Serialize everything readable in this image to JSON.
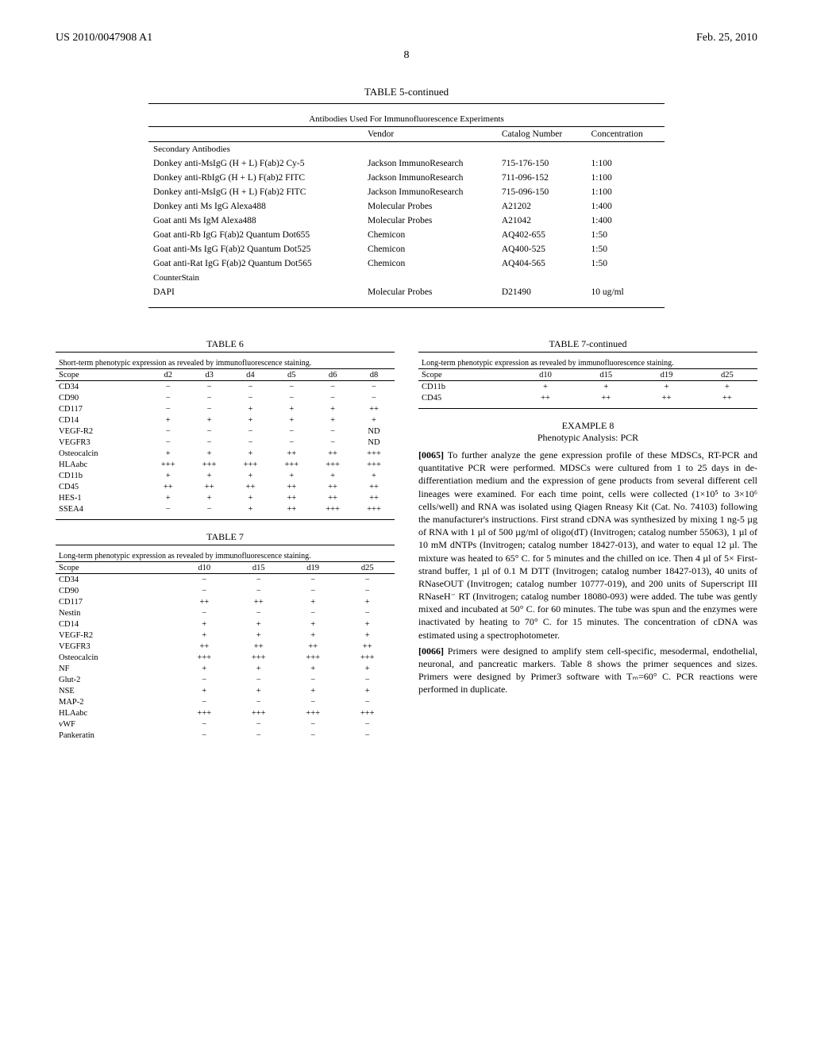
{
  "header": {
    "pub_number": "US 2010/0047908 A1",
    "pub_date": "Feb. 25, 2010",
    "page": "8"
  },
  "table5": {
    "title": "TABLE 5-continued",
    "caption": "Antibodies Used For Immunofluorescence Experiments",
    "columns": [
      "",
      "Vendor",
      "Catalog Number",
      "Concentration"
    ],
    "section1": "Secondary Antibodies",
    "rows": [
      [
        "Donkey anti-MsIgG (H + L) F(ab)2 Cy-5",
        "Jackson ImmunoResearch",
        "715-176-150",
        "1:100"
      ],
      [
        "Donkey anti-RbIgG (H + L) F(ab)2 FITC",
        "Jackson ImmunoResearch",
        "711-096-152",
        "1:100"
      ],
      [
        "Donkey anti-MsIgG (H + L) F(ab)2 FITC",
        "Jackson ImmunoResearch",
        "715-096-150",
        "1:100"
      ],
      [
        "Donkey anti Ms IgG Alexa488",
        "Molecular Probes",
        "A21202",
        "1:400"
      ],
      [
        "Goat anti Ms IgM Alexa488",
        "Molecular Probes",
        "A21042",
        "1:400"
      ],
      [
        "Goat anti-Rb IgG F(ab)2 Quantum Dot655",
        "Chemicon",
        "AQ402-655",
        "1:50"
      ],
      [
        "Goat anti-Ms IgG F(ab)2 Quantum Dot525",
        "Chemicon",
        "AQ400-525",
        "1:50"
      ],
      [
        "Goat anti-Rat IgG F(ab)2 Quantum Dot565",
        "Chemicon",
        "AQ404-565",
        "1:50"
      ]
    ],
    "section2": "CounterStain",
    "rows2": [
      [
        "DAPI",
        "Molecular Probes",
        "D21490",
        "10 ug/ml"
      ]
    ]
  },
  "table6": {
    "title": "TABLE 6",
    "caption": "Short-term phenotypic expression as revealed by immunofluorescence staining.",
    "columns": [
      "Scope",
      "d2",
      "d3",
      "d4",
      "d5",
      "d6",
      "d8"
    ],
    "rows": [
      [
        "CD34",
        "−",
        "−",
        "−",
        "−",
        "−",
        "−"
      ],
      [
        "CD90",
        "−",
        "−",
        "−",
        "−",
        "−",
        "−"
      ],
      [
        "CD117",
        "−",
        "−",
        "+",
        "+",
        "+",
        "++"
      ],
      [
        "CD14",
        "+",
        "+",
        "+",
        "+",
        "+",
        "+"
      ],
      [
        "VEGF-R2",
        "−",
        "−",
        "−",
        "−",
        "−",
        "ND"
      ],
      [
        "VEGFR3",
        "−",
        "−",
        "−",
        "−",
        "−",
        "ND"
      ],
      [
        "Osteocalcin",
        "+",
        "+",
        "+",
        "++",
        "++",
        "+++"
      ],
      [
        "HLAabc",
        "+++",
        "+++",
        "+++",
        "+++",
        "+++",
        "+++"
      ],
      [
        "CD11b",
        "+",
        "+",
        "+",
        "+",
        "+",
        "+"
      ],
      [
        "CD45",
        "++",
        "++",
        "++",
        "++",
        "++",
        "++"
      ],
      [
        "HES-1",
        "+",
        "+",
        "+",
        "++",
        "++",
        "++"
      ],
      [
        "SSEA4",
        "−",
        "−",
        "+",
        "++",
        "+++",
        "+++"
      ]
    ]
  },
  "table7": {
    "title": "TABLE 7",
    "caption": "Long-term phenotypic expression as revealed by immunofluorescence staining.",
    "columns": [
      "Scope",
      "d10",
      "d15",
      "d19",
      "d25"
    ],
    "rows": [
      [
        "CD34",
        "−",
        "−",
        "−",
        "−"
      ],
      [
        "CD90",
        "−",
        "−",
        "−",
        "−"
      ],
      [
        "CD117",
        "++",
        "++",
        "+",
        "+"
      ],
      [
        "Nestin",
        "−",
        "−",
        "−",
        "−"
      ],
      [
        "CD14",
        "+",
        "+",
        "+",
        "+"
      ],
      [
        "VEGF-R2",
        "+",
        "+",
        "+",
        "+"
      ],
      [
        "VEGFR3",
        "++",
        "++",
        "++",
        "++"
      ],
      [
        "Osteocalcin",
        "+++",
        "+++",
        "+++",
        "+++"
      ],
      [
        "NF",
        "+",
        "+",
        "+",
        "+"
      ],
      [
        "Glut-2",
        "−",
        "−",
        "−",
        "−"
      ],
      [
        "NSE",
        "+",
        "+",
        "+",
        "+"
      ],
      [
        "MAP-2",
        "−",
        "−",
        "−",
        "−"
      ],
      [
        "HLAabc",
        "+++",
        "+++",
        "+++",
        "+++"
      ],
      [
        "vWF",
        "−",
        "−",
        "−",
        "−"
      ],
      [
        "Pankeratin",
        "−",
        "−",
        "−",
        "−"
      ]
    ]
  },
  "table7c": {
    "title": "TABLE 7-continued",
    "caption": "Long-term phenotypic expression as revealed by immunofluorescence staining.",
    "columns": [
      "Scope",
      "d10",
      "d15",
      "d19",
      "d25"
    ],
    "rows": [
      [
        "CD11b",
        "+",
        "+",
        "+",
        "+"
      ],
      [
        "CD45",
        "++",
        "++",
        "++",
        "++"
      ]
    ]
  },
  "example8": {
    "heading": "EXAMPLE 8",
    "sub": "Phenotypic Analysis: PCR",
    "p1_num": "[0065]",
    "p1": "To further analyze the gene expression profile of these MDSCs, RT-PCR and quantitative PCR were performed. MDSCs were cultured from 1 to 25 days in de-differentiation medium and the expression of gene products from several different cell lineages were examined. For each time point, cells were collected (1×10⁵ to 3×10⁶ cells/well) and RNA was isolated using Qiagen Rneasy Kit (Cat. No. 74103) following the manufacturer's instructions. First strand cDNA was synthesized by mixing 1 ng-5 µg of RNA with 1 µl of 500 µg/ml of oligo(dT) (Invitrogen; catalog number 55063), 1 µl of 10 mM dNTPs (Invitrogen; catalog number 18427-013), and water to equal 12 µl. The mixture was heated to 65° C. for 5 minutes and the chilled on ice. Then 4 µl of 5× First-strand buffer, 1 µl of 0.1 M DTT (Invitrogen; catalog number 18427-013), 40 units of RNaseOUT (Invitrogen; catalog number 10777-019), and 200 units of Superscript III RNaseH⁻ RT (Invitrogen; catalog number 18080-093) were added. The tube was gently mixed and incubated at 50° C. for 60 minutes. The tube was spun and the enzymes were inactivated by heating to 70° C. for 15 minutes. The concentration of cDNA was estimated using a spectrophotometer.",
    "p2_num": "[0066]",
    "p2": "Primers were designed to amplify stem cell-specific, mesodermal, endothelial, neuronal, and pancreatic markers. Table 8 shows the primer sequences and sizes. Primers were designed by Primer3 software with Tₘ=60° C. PCR reactions were performed in duplicate."
  }
}
